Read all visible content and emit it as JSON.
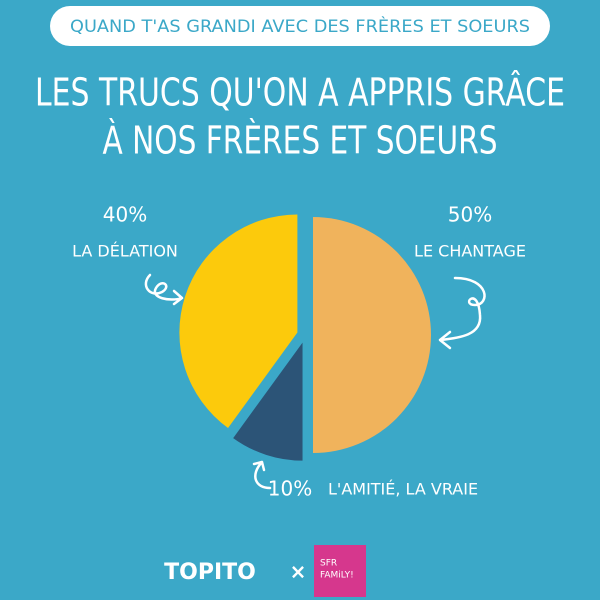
{
  "header": {
    "text": "QUAND T'AS GRANDI AVEC DES FRÈRES ET SOEURS"
  },
  "chart_data": {
    "type": "pie",
    "title_lines": [
      "LES TRUCS QU'ON A APPRIS GRÂCE",
      "À NOS FRÈRES ET SOEURS"
    ],
    "categories": [
      "LE CHANTAGE",
      "L'AMITIÉ, LA VRAIE",
      "LA DÉLATION"
    ],
    "values": [
      50,
      10,
      40
    ],
    "value_labels": [
      "50%",
      "10%",
      "40%"
    ],
    "colors": [
      "#f0b35c",
      "#2c5477",
      "#fcca0c"
    ]
  },
  "footer": {
    "logo": "TOPITO",
    "separator": "×",
    "partner_lines": [
      "SFR",
      "FAMiLY!"
    ]
  }
}
